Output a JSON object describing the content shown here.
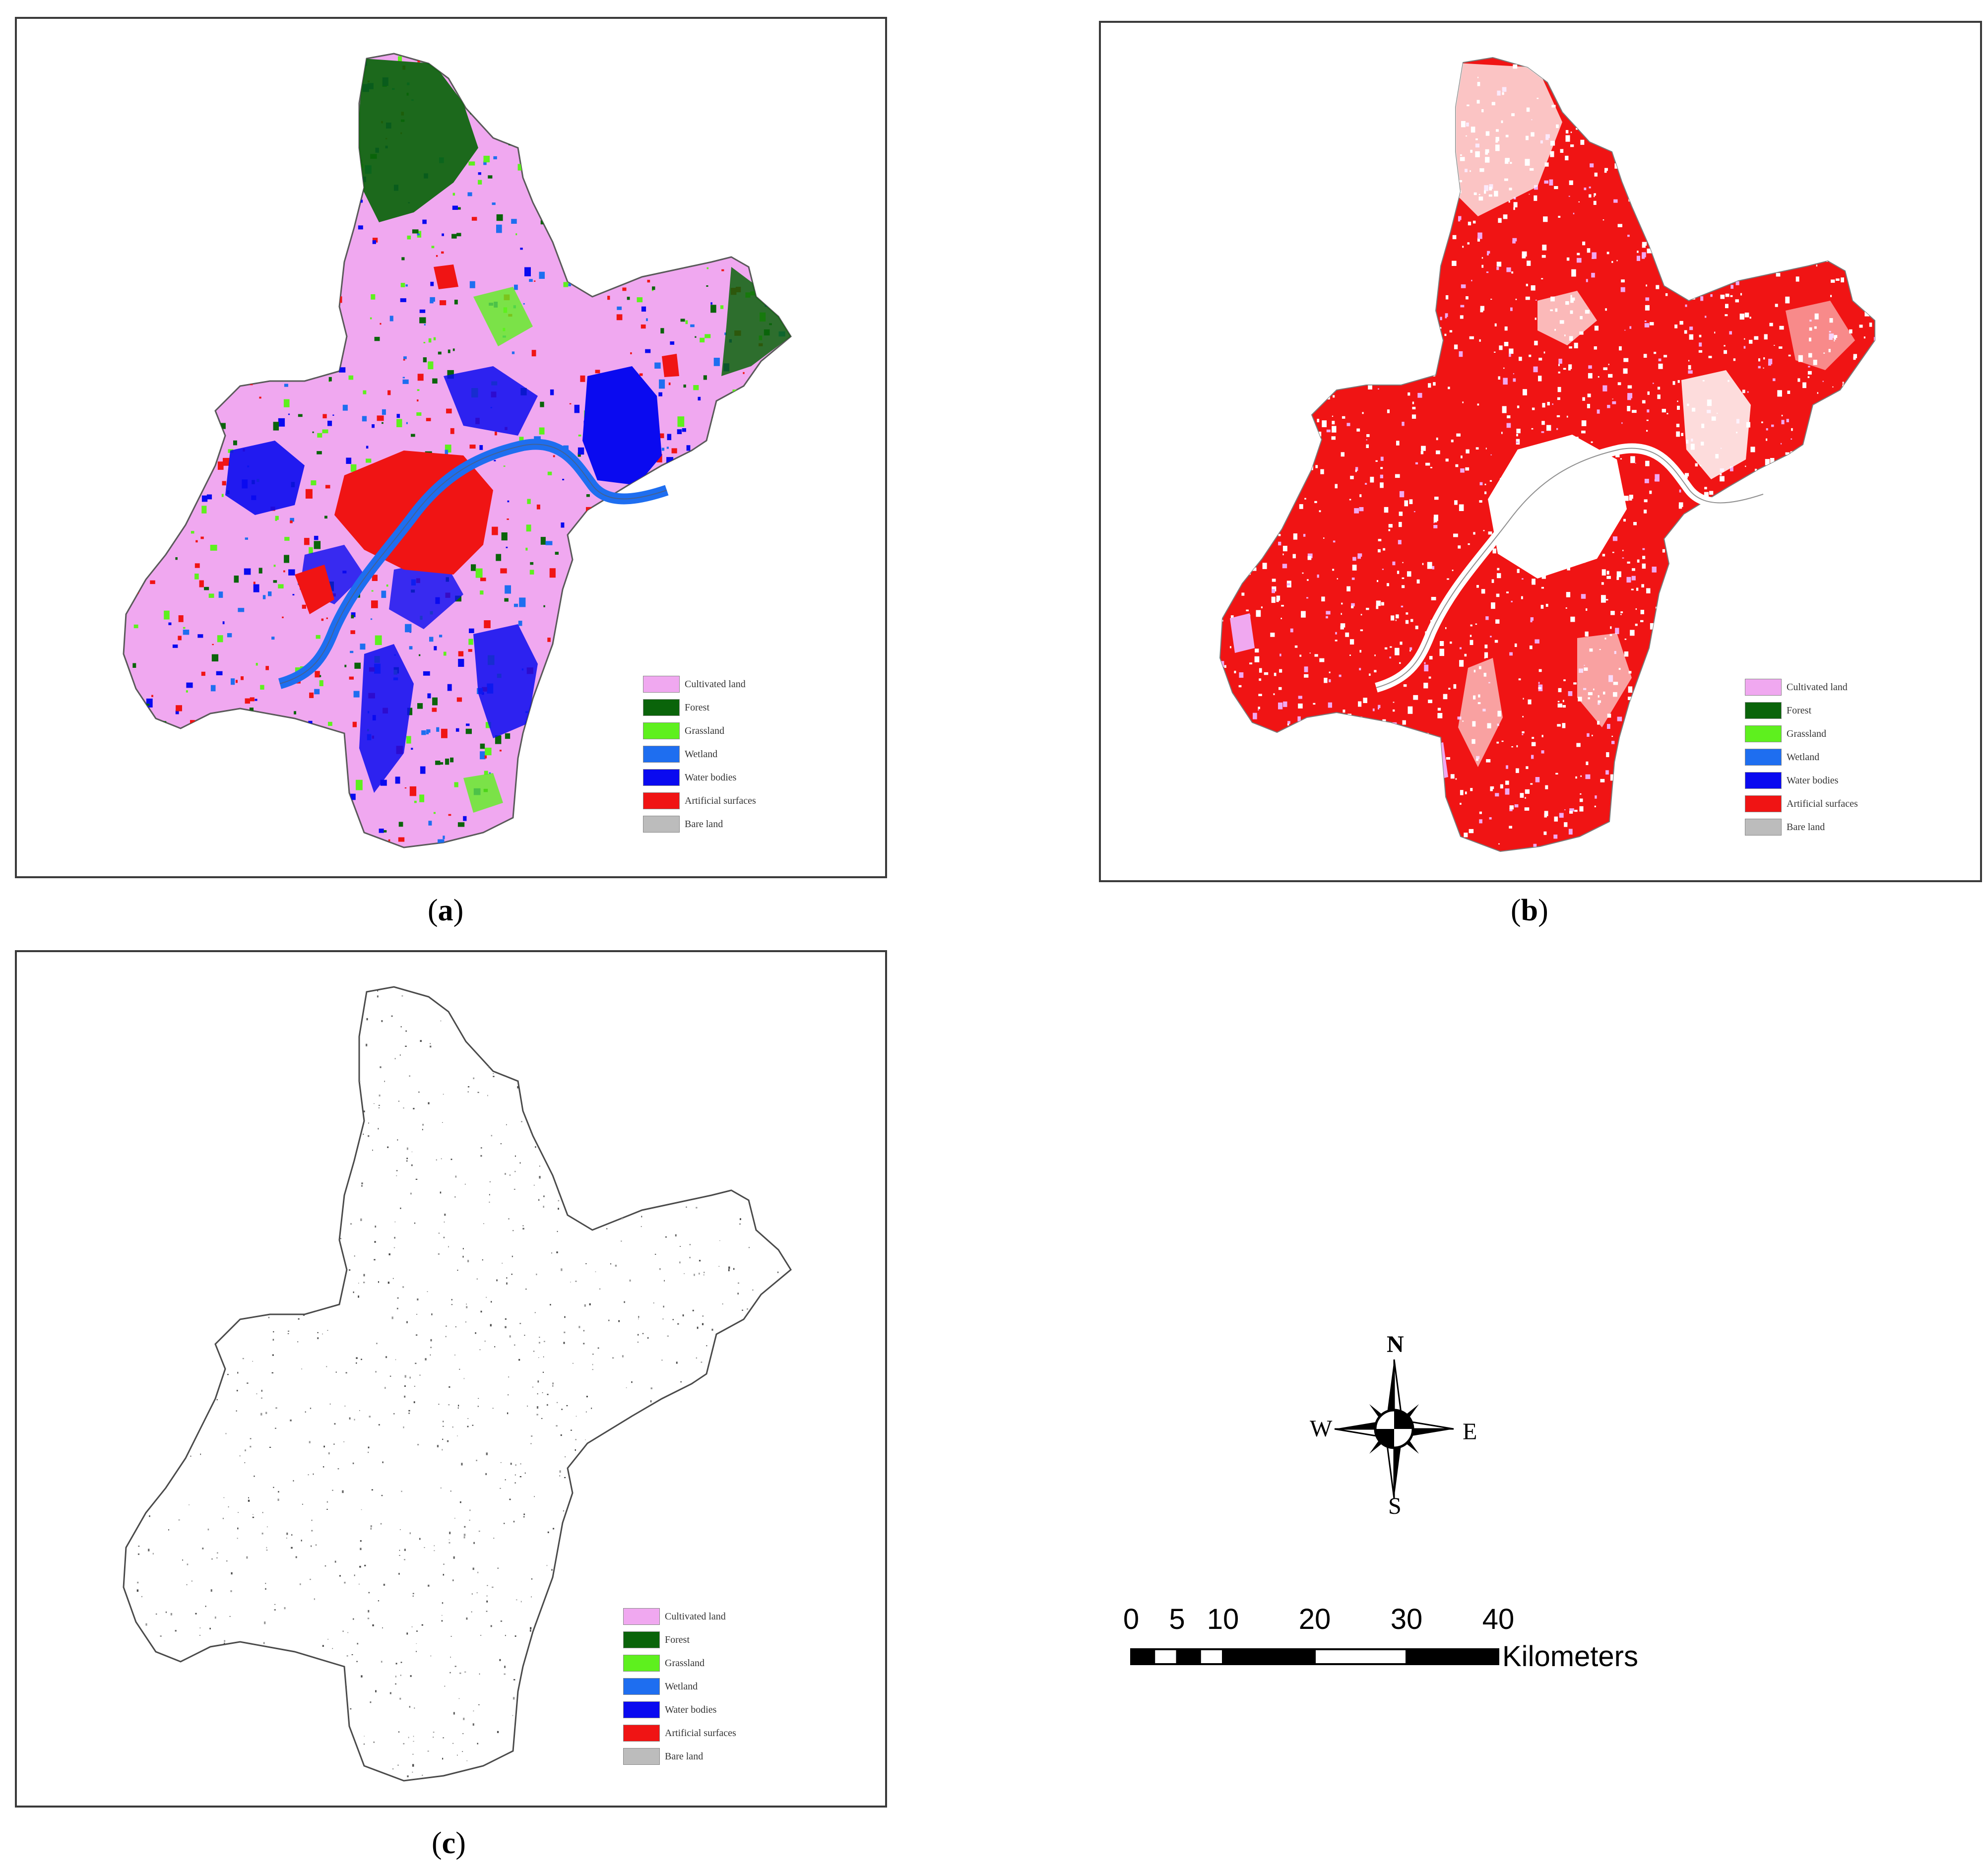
{
  "panels": [
    {
      "id": "a",
      "caption_letter": "a",
      "style": "landcover"
    },
    {
      "id": "b",
      "caption_letter": "b",
      "style": "artificial"
    },
    {
      "id": "c",
      "caption_letter": "c",
      "style": "sparse"
    }
  ],
  "legend": {
    "items": [
      {
        "label": "Cultivated land",
        "color": "#f0a8f0"
      },
      {
        "label": "Forest",
        "color": "#0a640a"
      },
      {
        "label": "Grassland",
        "color": "#5ef01e"
      },
      {
        "label": "Wetland",
        "color": "#1e6ef0"
      },
      {
        "label": "Water bodies",
        "color": "#0a0af0"
      },
      {
        "label": "Artificial surfaces",
        "color": "#f01414"
      },
      {
        "label": "Bare land",
        "color": "#bcbcbc"
      }
    ]
  },
  "compass": {
    "n": "N",
    "s": "S",
    "e": "E",
    "w": "W"
  },
  "scalebar": {
    "ticks": [
      "0",
      "5",
      "10",
      "20",
      "30",
      "40"
    ],
    "tick_values": [
      0,
      5,
      10,
      20,
      30,
      40
    ],
    "unit": "Kilometers"
  }
}
